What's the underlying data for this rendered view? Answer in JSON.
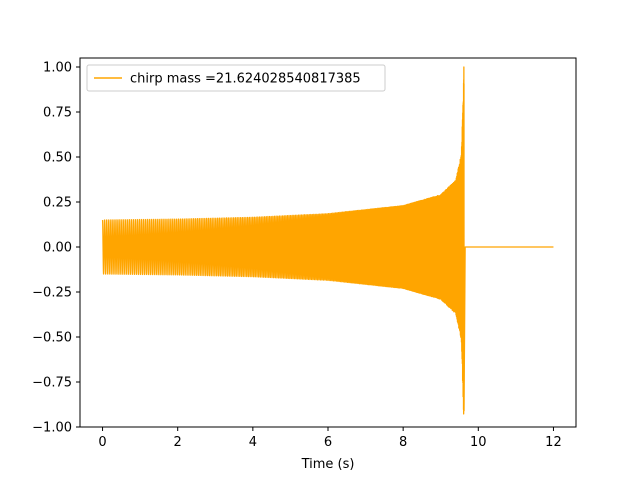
{
  "chart_data": {
    "type": "line",
    "title": "",
    "xlabel": "Time (s)",
    "ylabel": "",
    "xlim": [
      -0.6,
      12.6
    ],
    "ylim": [
      -1.0,
      1.05
    ],
    "x_ticks": [
      0,
      2,
      4,
      6,
      8,
      10,
      12
    ],
    "x_tick_labels": [
      "0",
      "2",
      "4",
      "6",
      "8",
      "10",
      "12"
    ],
    "y_ticks": [
      -1.0,
      -0.75,
      -0.5,
      -0.25,
      0.0,
      0.25,
      0.5,
      0.75,
      1.0
    ],
    "y_tick_labels": [
      "−1.00",
      "−0.75",
      "−0.50",
      "−0.25",
      "0.00",
      "0.25",
      "0.50",
      "0.75",
      "1.00"
    ],
    "grid": false,
    "legend_position": "top-left",
    "series": [
      {
        "name": "chirp mass =21.624028540817385",
        "color": "#ffa500",
        "t_start": 0,
        "t_merger": 9.62,
        "t_end": 12,
        "start_amplitude": 0.15,
        "peak_max": 1.0,
        "peak_min": -0.91,
        "post_merger_value": 0.0,
        "envelope_points": [
          [
            0,
            0.15
          ],
          [
            2,
            0.155
          ],
          [
            4,
            0.165
          ],
          [
            6,
            0.185
          ],
          [
            8,
            0.23
          ],
          [
            9,
            0.29
          ],
          [
            9.4,
            0.37
          ],
          [
            9.55,
            0.52
          ],
          [
            9.62,
            1.0
          ]
        ]
      }
    ]
  }
}
